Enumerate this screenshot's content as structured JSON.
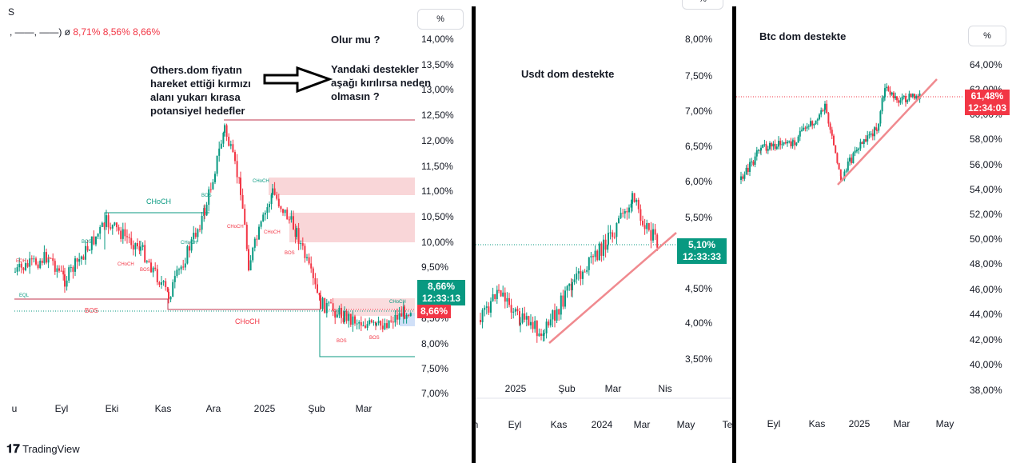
{
  "panel1": {
    "symbol": "S",
    "legend_prefix": ", ——, ——)  ø",
    "legend_values": [
      "8,71%",
      "8,56%",
      "8,66%"
    ],
    "percent_button": "%",
    "yaxis": [
      "14,00%",
      "13,50%",
      "13,00%",
      "12,50%",
      "12,00%",
      "11,50%",
      "11,00%",
      "10,50%",
      "10,00%",
      "9,50%",
      "8,50%",
      "8,00%",
      "7,50%",
      "7,00%"
    ],
    "xaxis": [
      "u",
      "Eyl",
      "Eki",
      "Kas",
      "Ara",
      "2025",
      "Şub",
      "Mar"
    ],
    "price_tag": {
      "value": "8,66%",
      "time": "12:33:13"
    },
    "price_tag2": "8,66%",
    "note_left": "Others.dom fiyatın\nhareket ettiği kırmızı\nalanı yukarı kırasa\npotansiyel hedefler",
    "note_right_q": "Olur mu ?",
    "note_right": "Yandaki destekler\naşağı kırılırsa neden\nolmasın ?",
    "smc_labels": {
      "choch_green": "CHoCH",
      "choch_red": "CHoCH",
      "bos_red": "BOS",
      "bos": "BOS",
      "eqh": "EQH",
      "eql": "EQL"
    },
    "colors": {
      "up": "#089981",
      "down": "#f23645",
      "zone": "#f7c5c8"
    }
  },
  "panel2": {
    "percent_button": "%",
    "title": "Usdt dom destekte",
    "yaxis": [
      "8,00%",
      "7,50%",
      "7,00%",
      "6,50%",
      "6,00%",
      "5,50%",
      "4,50%",
      "4,00%",
      "3,50%"
    ],
    "xaxis": [
      "2025",
      "Şub",
      "Mar",
      "Nis"
    ],
    "xaxis_bottom": [
      "n",
      "Eyl",
      "Kas",
      "2024",
      "Mar",
      "May",
      "Tem"
    ],
    "price_tag": {
      "value": "5,10%",
      "time": "12:33:33"
    }
  },
  "panel3": {
    "percent_button": "%",
    "title": "Btc dom destekte",
    "yaxis": [
      "64,00%",
      "62,00%",
      "60,00%",
      "58,00%",
      "56,00%",
      "54,00%",
      "52,00%",
      "50,00%",
      "48,00%",
      "46,00%",
      "44,00%",
      "42,00%",
      "40,00%",
      "38,00%"
    ],
    "xaxis": [
      "Eyl",
      "Kas",
      "2025",
      "Mar",
      "May"
    ],
    "price_tag": {
      "value": "61,48%",
      "time": "12:34:03"
    }
  },
  "chart_data": [
    {
      "type": "line",
      "title": "",
      "ylabel": "%",
      "x": [
        "Ağu",
        "Eyl",
        "Eki",
        "Kas",
        "Ara",
        "2025",
        "Şub",
        "Mar"
      ],
      "values": [
        9.2,
        9.0,
        10.3,
        9.2,
        12.2,
        10.6,
        8.6,
        8.66
      ],
      "ylim": [
        7.0,
        14.0
      ]
    },
    {
      "type": "line",
      "title": "Usdt dom destekte",
      "ylabel": "%",
      "x": [
        "2025",
        "Şub",
        "Mar",
        "Nis"
      ],
      "values": [
        4.1,
        3.9,
        5.8,
        5.1
      ],
      "ylim": [
        3.3,
        8.3
      ]
    },
    {
      "type": "line",
      "title": "Btc dom destekte",
      "ylabel": "%",
      "x": [
        "Eyl",
        "Kas",
        "2025",
        "Mar"
      ],
      "values": [
        56.5,
        59.0,
        60.0,
        61.48
      ],
      "ylim": [
        37.0,
        65.0
      ]
    }
  ]
}
